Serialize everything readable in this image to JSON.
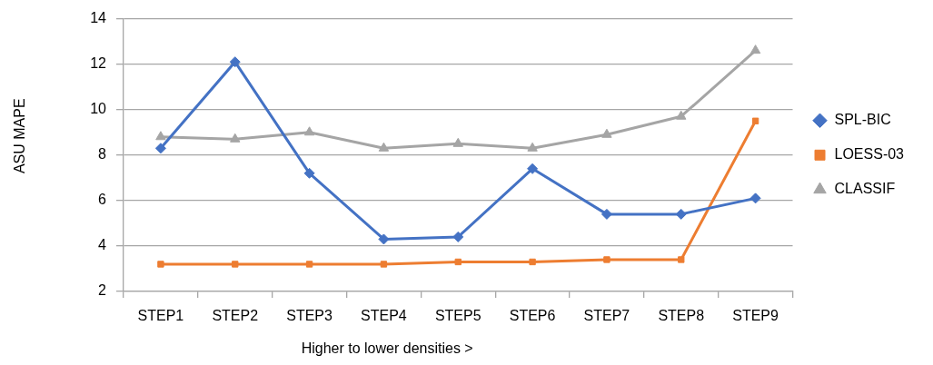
{
  "chart_data": {
    "type": "line",
    "xlabel": "Higher to lower densities >",
    "ylabel": "ASU MAPE",
    "categories": [
      "STEP1",
      "STEP2",
      "STEP3",
      "STEP4",
      "STEP5",
      "STEP6",
      "STEP7",
      "STEP8",
      "STEP9"
    ],
    "ylim": [
      2,
      14
    ],
    "yticks": [
      2,
      4,
      6,
      8,
      10,
      12,
      14
    ],
    "grid": "y",
    "legend": "right",
    "series": [
      {
        "name": "SPL-BIC",
        "color": "#4472c4",
        "marker": "diamond",
        "values": [
          8.3,
          12.1,
          7.2,
          4.3,
          4.4,
          7.4,
          5.4,
          5.4,
          6.1
        ]
      },
      {
        "name": "LOESS-03",
        "color": "#ed7d31",
        "marker": "square",
        "values": [
          3.2,
          3.2,
          3.2,
          3.2,
          3.3,
          3.3,
          3.4,
          3.4,
          9.5
        ]
      },
      {
        "name": "CLASSIF",
        "color": "#a5a5a5",
        "marker": "triangle",
        "values": [
          8.8,
          8.7,
          9.0,
          8.3,
          8.5,
          8.3,
          8.9,
          9.7,
          12.6
        ]
      }
    ]
  }
}
